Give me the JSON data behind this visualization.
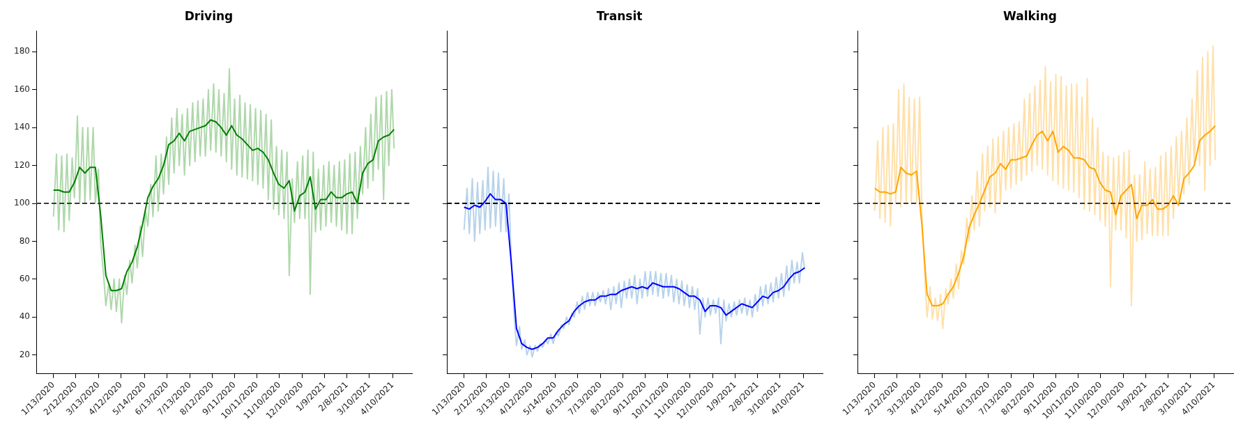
{
  "chart_data": [
    {
      "type": "line",
      "title": "Driving",
      "grid": false,
      "legend": false,
      "x": [
        "2020-01-13",
        "2020-01-17",
        "2020-01-20",
        "2020-01-24",
        "2020-01-27",
        "2020-01-31",
        "2020-02-03",
        "2020-02-07",
        "2020-02-10",
        "2020-02-14",
        "2020-02-17",
        "2020-02-21",
        "2020-02-24",
        "2020-02-28",
        "2020-03-02",
        "2020-03-06",
        "2020-03-09",
        "2020-03-13",
        "2020-03-16",
        "2020-03-20",
        "2020-03-23",
        "2020-03-27",
        "2020-03-30",
        "2020-04-03",
        "2020-04-06",
        "2020-04-10",
        "2020-04-13",
        "2020-04-17",
        "2020-04-20",
        "2020-04-24",
        "2020-04-27",
        "2020-05-01",
        "2020-05-04",
        "2020-05-08",
        "2020-05-11",
        "2020-05-15",
        "2020-05-18",
        "2020-05-22",
        "2020-05-25",
        "2020-05-29",
        "2020-06-01",
        "2020-06-05",
        "2020-06-08",
        "2020-06-12",
        "2020-06-15",
        "2020-06-19",
        "2020-06-22",
        "2020-06-26",
        "2020-06-29",
        "2020-07-03",
        "2020-07-06",
        "2020-07-10",
        "2020-07-13",
        "2020-07-17",
        "2020-07-20",
        "2020-07-24",
        "2020-07-27",
        "2020-07-31",
        "2020-08-03",
        "2020-08-07",
        "2020-08-10",
        "2020-08-14",
        "2020-08-17",
        "2020-08-21",
        "2020-08-24",
        "2020-08-28",
        "2020-08-31",
        "2020-09-04",
        "2020-09-07",
        "2020-09-11",
        "2020-09-14",
        "2020-09-18",
        "2020-09-21",
        "2020-09-25",
        "2020-09-28",
        "2020-10-02",
        "2020-10-05",
        "2020-10-09",
        "2020-10-12",
        "2020-10-16",
        "2020-10-19",
        "2020-10-23",
        "2020-10-26",
        "2020-10-30",
        "2020-11-02",
        "2020-11-06",
        "2020-11-09",
        "2020-11-13",
        "2020-11-16",
        "2020-11-20",
        "2020-11-23",
        "2020-11-27",
        "2020-11-30",
        "2020-12-04",
        "2020-12-07",
        "2020-12-11",
        "2020-12-14",
        "2020-12-18",
        "2020-12-21",
        "2020-12-25",
        "2020-12-28",
        "2021-01-01",
        "2021-01-04",
        "2021-01-08",
        "2021-01-11",
        "2021-01-15",
        "2021-01-18",
        "2021-01-22",
        "2021-01-25",
        "2021-01-29",
        "2021-02-01",
        "2021-02-05",
        "2021-02-08",
        "2021-02-12",
        "2021-02-15",
        "2021-02-19",
        "2021-02-22",
        "2021-02-26",
        "2021-03-01",
        "2021-03-05",
        "2021-03-08",
        "2021-03-12",
        "2021-03-15",
        "2021-03-19",
        "2021-03-22",
        "2021-03-26",
        "2021-03-29",
        "2021-04-02",
        "2021-04-05",
        "2021-04-09",
        "2021-04-12"
      ],
      "series": [
        {
          "color": "#afd8ab",
          "values": [
            93,
            126,
            86,
            125,
            85,
            126,
            91,
            124,
            103,
            146,
            100,
            140,
            100,
            140,
            102,
            140,
            100,
            118,
            80,
            62,
            46,
            58,
            44,
            60,
            43,
            60,
            37,
            62,
            52,
            70,
            58,
            78,
            66,
            88,
            72,
            96,
            88,
            110,
            93,
            125,
            96,
            126,
            105,
            135,
            110,
            145,
            116,
            150,
            120,
            147,
            115,
            150,
            120,
            153,
            122,
            154,
            125,
            155,
            125,
            160,
            128,
            163,
            127,
            160,
            125,
            158,
            122,
            171,
            118,
            155,
            115,
            157,
            114,
            153,
            113,
            152,
            112,
            150,
            110,
            149,
            108,
            147,
            102,
            144,
            97,
            130,
            94,
            128,
            92,
            127,
            62,
            113,
            90,
            122,
            92,
            125,
            92,
            128,
            52,
            127,
            85,
            118,
            86,
            120,
            88,
            122,
            90,
            120,
            88,
            122,
            86,
            123,
            84,
            126,
            84,
            127,
            92,
            130,
            105,
            140,
            108,
            147,
            112,
            156,
            118,
            157,
            102,
            159,
            120,
            160,
            129
          ]
        },
        {
          "color": "#008000",
          "x": [
            "2020-01-13",
            "2020-01-20",
            "2020-01-27",
            "2020-02-03",
            "2020-02-10",
            "2020-02-17",
            "2020-02-24",
            "2020-03-02",
            "2020-03-09",
            "2020-03-16",
            "2020-03-23",
            "2020-03-30",
            "2020-04-06",
            "2020-04-13",
            "2020-04-20",
            "2020-04-27",
            "2020-05-04",
            "2020-05-11",
            "2020-05-18",
            "2020-05-25",
            "2020-06-01",
            "2020-06-08",
            "2020-06-15",
            "2020-06-22",
            "2020-06-29",
            "2020-07-06",
            "2020-07-13",
            "2020-07-20",
            "2020-07-27",
            "2020-08-03",
            "2020-08-10",
            "2020-08-17",
            "2020-08-24",
            "2020-08-31",
            "2020-09-07",
            "2020-09-14",
            "2020-09-21",
            "2020-09-28",
            "2020-10-05",
            "2020-10-12",
            "2020-10-19",
            "2020-10-26",
            "2020-11-02",
            "2020-11-09",
            "2020-11-16",
            "2020-11-23",
            "2020-11-30",
            "2020-12-07",
            "2020-12-14",
            "2020-12-21",
            "2020-12-28",
            "2021-01-04",
            "2021-01-11",
            "2021-01-18",
            "2021-01-25",
            "2021-02-01",
            "2021-02-08",
            "2021-02-15",
            "2021-02-22",
            "2021-03-01",
            "2021-03-08",
            "2021-03-15",
            "2021-03-22",
            "2021-03-29",
            "2021-04-05",
            "2021-04-12"
          ],
          "values": [
            107,
            107,
            106,
            106,
            111,
            119,
            116,
            119,
            119,
            94,
            62,
            54,
            54,
            55,
            64,
            69,
            77,
            89,
            103,
            109,
            113,
            120,
            131,
            133,
            137,
            133,
            138,
            139,
            140,
            141,
            144,
            143,
            140,
            136,
            141,
            136,
            134,
            131,
            128,
            129,
            127,
            123,
            116,
            110,
            108,
            112,
            96,
            104,
            106,
            114,
            97,
            102,
            102,
            106,
            103,
            103,
            105,
            106,
            100,
            116,
            121,
            123,
            133,
            135,
            136,
            139
          ]
        }
      ],
      "xlim": [
        "2019-12-21",
        "2021-05-06"
      ],
      "xticks": [
        {
          "value": "2020-01-13",
          "label": "1/13/2020"
        },
        {
          "value": "2020-02-12",
          "label": "2/12/2020"
        },
        {
          "value": "2020-03-13",
          "label": "3/13/2020"
        },
        {
          "value": "2020-04-12",
          "label": "4/12/2020"
        },
        {
          "value": "2020-05-14",
          "label": "5/14/2020"
        },
        {
          "value": "2020-06-13",
          "label": "6/13/2020"
        },
        {
          "value": "2020-07-13",
          "label": "7/13/2020"
        },
        {
          "value": "2020-08-12",
          "label": "8/12/2020"
        },
        {
          "value": "2020-09-11",
          "label": "9/11/2020"
        },
        {
          "value": "2020-10-11",
          "label": "10/11/2020"
        },
        {
          "value": "2020-11-10",
          "label": "11/10/2020"
        },
        {
          "value": "2020-12-10",
          "label": "12/10/2020"
        },
        {
          "value": "2021-01-09",
          "label": "1/9/2021"
        },
        {
          "value": "2021-02-08",
          "label": "2/8/2021"
        },
        {
          "value": "2021-03-10",
          "label": "3/10/2021"
        },
        {
          "value": "2021-04-10",
          "label": "4/10/2021"
        }
      ],
      "ylim": [
        10,
        191
      ],
      "yticks": [
        20,
        40,
        60,
        80,
        100,
        120,
        140,
        160,
        180
      ],
      "ref_lines": [
        {
          "axis": "y",
          "value": 100,
          "color": "#3a3a3a",
          "line_style": "dashed"
        }
      ]
    },
    {
      "type": "line",
      "title": "Transit",
      "grid": false,
      "legend": false,
      "tick_labels": "x",
      "x": [
        "2020-01-13",
        "2020-01-17",
        "2020-01-20",
        "2020-01-24",
        "2020-01-27",
        "2020-01-31",
        "2020-02-03",
        "2020-02-07",
        "2020-02-10",
        "2020-02-14",
        "2020-02-17",
        "2020-02-21",
        "2020-02-24",
        "2020-02-28",
        "2020-03-02",
        "2020-03-06",
        "2020-03-09",
        "2020-03-13",
        "2020-03-16",
        "2020-03-20",
        "2020-03-23",
        "2020-03-27",
        "2020-03-30",
        "2020-04-03",
        "2020-04-06",
        "2020-04-10",
        "2020-04-13",
        "2020-04-17",
        "2020-04-20",
        "2020-04-24",
        "2020-04-27",
        "2020-05-01",
        "2020-05-04",
        "2020-05-08",
        "2020-05-11",
        "2020-05-15",
        "2020-05-18",
        "2020-05-22",
        "2020-05-25",
        "2020-05-29",
        "2020-06-01",
        "2020-06-05",
        "2020-06-08",
        "2020-06-12",
        "2020-06-15",
        "2020-06-19",
        "2020-06-22",
        "2020-06-26",
        "2020-06-29",
        "2020-07-03",
        "2020-07-06",
        "2020-07-10",
        "2020-07-13",
        "2020-07-17",
        "2020-07-20",
        "2020-07-24",
        "2020-07-27",
        "2020-07-31",
        "2020-08-03",
        "2020-08-07",
        "2020-08-10",
        "2020-08-14",
        "2020-08-17",
        "2020-08-21",
        "2020-08-24",
        "2020-08-28",
        "2020-08-31",
        "2020-09-04",
        "2020-09-07",
        "2020-09-11",
        "2020-09-14",
        "2020-09-18",
        "2020-09-21",
        "2020-09-25",
        "2020-09-28",
        "2020-10-02",
        "2020-10-05",
        "2020-10-09",
        "2020-10-12",
        "2020-10-16",
        "2020-10-19",
        "2020-10-23",
        "2020-10-26",
        "2020-10-30",
        "2020-11-02",
        "2020-11-06",
        "2020-11-09",
        "2020-11-13",
        "2020-11-16",
        "2020-11-20",
        "2020-11-23",
        "2020-11-27",
        "2020-11-30",
        "2020-12-04",
        "2020-12-07",
        "2020-12-11",
        "2020-12-14",
        "2020-12-18",
        "2020-12-21",
        "2020-12-25",
        "2020-12-28",
        "2021-01-01",
        "2021-01-04",
        "2021-01-08",
        "2021-01-11",
        "2021-01-15",
        "2021-01-18",
        "2021-01-22",
        "2021-01-25",
        "2021-01-29",
        "2021-02-01",
        "2021-02-05",
        "2021-02-08",
        "2021-02-12",
        "2021-02-15",
        "2021-02-19",
        "2021-02-22",
        "2021-02-26",
        "2021-03-01",
        "2021-03-05",
        "2021-03-08",
        "2021-03-12",
        "2021-03-15",
        "2021-03-19",
        "2021-03-22",
        "2021-03-26",
        "2021-03-29",
        "2021-04-02",
        "2021-04-05",
        "2021-04-09",
        "2021-04-12"
      ],
      "series": [
        {
          "color": "#b8d3ea",
          "values": [
            86,
            108,
            84,
            113,
            80,
            111,
            84,
            112,
            86,
            119,
            87,
            117,
            88,
            116,
            85,
            113,
            85,
            105,
            70,
            40,
            25,
            35,
            23,
            28,
            20,
            25,
            19,
            25,
            22,
            26,
            24,
            28,
            26,
            31,
            26,
            32,
            30,
            36,
            34,
            40,
            36,
            42,
            40,
            48,
            42,
            51,
            44,
            53,
            46,
            53,
            46,
            53,
            48,
            54,
            47,
            55,
            44,
            56,
            47,
            58,
            45,
            59,
            50,
            60,
            50,
            62,
            47,
            60,
            50,
            64,
            51,
            64,
            52,
            64,
            51,
            63,
            50,
            63,
            51,
            62,
            48,
            60,
            47,
            59,
            46,
            57,
            45,
            56,
            44,
            55,
            31,
            50,
            40,
            50,
            41,
            49,
            42,
            50,
            26,
            49,
            38,
            47,
            40,
            48,
            41,
            49,
            42,
            50,
            41,
            49,
            40,
            52,
            43,
            56,
            46,
            57,
            47,
            58,
            48,
            61,
            50,
            63,
            51,
            67,
            54,
            70,
            58,
            69,
            58,
            74,
            65
          ]
        },
        {
          "color": "#0000ff",
          "x": [
            "2020-01-13",
            "2020-01-20",
            "2020-01-27",
            "2020-02-03",
            "2020-02-10",
            "2020-02-17",
            "2020-02-24",
            "2020-03-02",
            "2020-03-09",
            "2020-03-16",
            "2020-03-23",
            "2020-03-30",
            "2020-04-06",
            "2020-04-13",
            "2020-04-20",
            "2020-04-27",
            "2020-05-04",
            "2020-05-11",
            "2020-05-18",
            "2020-05-25",
            "2020-06-01",
            "2020-06-08",
            "2020-06-15",
            "2020-06-22",
            "2020-06-29",
            "2020-07-06",
            "2020-07-13",
            "2020-07-20",
            "2020-07-27",
            "2020-08-03",
            "2020-08-10",
            "2020-08-17",
            "2020-08-24",
            "2020-08-31",
            "2020-09-07",
            "2020-09-14",
            "2020-09-21",
            "2020-09-28",
            "2020-10-05",
            "2020-10-12",
            "2020-10-19",
            "2020-10-26",
            "2020-11-02",
            "2020-11-09",
            "2020-11-16",
            "2020-11-23",
            "2020-11-30",
            "2020-12-07",
            "2020-12-14",
            "2020-12-21",
            "2020-12-28",
            "2021-01-04",
            "2021-01-11",
            "2021-01-18",
            "2021-01-25",
            "2021-02-01",
            "2021-02-08",
            "2021-02-15",
            "2021-02-22",
            "2021-03-01",
            "2021-03-08",
            "2021-03-15",
            "2021-03-22",
            "2021-03-29",
            "2021-04-05",
            "2021-04-12"
          ],
          "values": [
            98,
            97,
            99,
            98,
            101,
            105,
            102,
            102,
            100,
            69,
            34,
            26,
            24,
            23,
            24,
            26,
            29,
            29,
            33,
            36,
            38,
            43,
            46,
            48,
            49,
            49,
            51,
            51,
            52,
            52,
            54,
            55,
            56,
            55,
            56,
            55,
            58,
            57,
            56,
            56,
            56,
            55,
            53,
            51,
            51,
            49,
            43,
            46,
            46,
            45,
            41,
            43,
            45,
            47,
            46,
            45,
            48,
            51,
            50,
            53,
            54,
            56,
            60,
            63,
            64,
            66
          ]
        }
      ],
      "xlim": [
        "2019-12-21",
        "2021-05-06"
      ],
      "xticks": [
        {
          "value": "2020-01-13",
          "label": "1/13/2020"
        },
        {
          "value": "2020-02-12",
          "label": "2/12/2020"
        },
        {
          "value": "2020-03-13",
          "label": "3/13/2020"
        },
        {
          "value": "2020-04-12",
          "label": "4/12/2020"
        },
        {
          "value": "2020-05-14",
          "label": "5/14/2020"
        },
        {
          "value": "2020-06-13",
          "label": "6/13/2020"
        },
        {
          "value": "2020-07-13",
          "label": "7/13/2020"
        },
        {
          "value": "2020-08-12",
          "label": "8/12/2020"
        },
        {
          "value": "2020-09-11",
          "label": "9/11/2020"
        },
        {
          "value": "2020-10-11",
          "label": "10/11/2020"
        },
        {
          "value": "2020-11-10",
          "label": "11/10/2020"
        },
        {
          "value": "2020-12-10",
          "label": "12/10/2020"
        },
        {
          "value": "2021-01-09",
          "label": "1/9/2021"
        },
        {
          "value": "2021-02-08",
          "label": "2/8/2021"
        },
        {
          "value": "2021-03-10",
          "label": "3/10/2021"
        },
        {
          "value": "2021-04-10",
          "label": "4/10/2021"
        }
      ],
      "ylim": [
        10,
        191
      ],
      "yticks": [
        20,
        40,
        60,
        80,
        100,
        120,
        140,
        160,
        180
      ],
      "ref_lines": [
        {
          "axis": "y",
          "value": 100,
          "color": "#000000",
          "line_style": "dashed"
        }
      ]
    },
    {
      "type": "line",
      "title": "Walking",
      "grid": false,
      "legend": false,
      "tick_labels": "x",
      "x": [
        "2020-01-13",
        "2020-01-17",
        "2020-01-20",
        "2020-01-24",
        "2020-01-27",
        "2020-01-31",
        "2020-02-03",
        "2020-02-07",
        "2020-02-10",
        "2020-02-14",
        "2020-02-17",
        "2020-02-21",
        "2020-02-24",
        "2020-02-28",
        "2020-03-02",
        "2020-03-06",
        "2020-03-09",
        "2020-03-13",
        "2020-03-16",
        "2020-03-20",
        "2020-03-23",
        "2020-03-27",
        "2020-03-30",
        "2020-04-03",
        "2020-04-06",
        "2020-04-10",
        "2020-04-13",
        "2020-04-17",
        "2020-04-20",
        "2020-04-24",
        "2020-04-27",
        "2020-05-01",
        "2020-05-04",
        "2020-05-08",
        "2020-05-11",
        "2020-05-15",
        "2020-05-18",
        "2020-05-22",
        "2020-05-25",
        "2020-05-29",
        "2020-06-01",
        "2020-06-05",
        "2020-06-08",
        "2020-06-12",
        "2020-06-15",
        "2020-06-19",
        "2020-06-22",
        "2020-06-26",
        "2020-06-29",
        "2020-07-03",
        "2020-07-06",
        "2020-07-10",
        "2020-07-13",
        "2020-07-17",
        "2020-07-20",
        "2020-07-24",
        "2020-07-27",
        "2020-07-31",
        "2020-08-03",
        "2020-08-07",
        "2020-08-10",
        "2020-08-14",
        "2020-08-17",
        "2020-08-21",
        "2020-08-24",
        "2020-08-28",
        "2020-08-31",
        "2020-09-04",
        "2020-09-07",
        "2020-09-11",
        "2020-09-14",
        "2020-09-18",
        "2020-09-21",
        "2020-09-25",
        "2020-09-28",
        "2020-10-02",
        "2020-10-05",
        "2020-10-09",
        "2020-10-12",
        "2020-10-16",
        "2020-10-19",
        "2020-10-23",
        "2020-10-26",
        "2020-10-30",
        "2020-11-02",
        "2020-11-06",
        "2020-11-09",
        "2020-11-13",
        "2020-11-16",
        "2020-11-20",
        "2020-11-23",
        "2020-11-27",
        "2020-11-30",
        "2020-12-04",
        "2020-12-07",
        "2020-12-11",
        "2020-12-14",
        "2020-12-18",
        "2020-12-21",
        "2020-12-25",
        "2020-12-28",
        "2021-01-01",
        "2021-01-04",
        "2021-01-08",
        "2021-01-11",
        "2021-01-15",
        "2021-01-18",
        "2021-01-22",
        "2021-01-25",
        "2021-01-29",
        "2021-02-01",
        "2021-02-05",
        "2021-02-08",
        "2021-02-12",
        "2021-02-15",
        "2021-02-19",
        "2021-02-22",
        "2021-02-26",
        "2021-03-01",
        "2021-03-05",
        "2021-03-08",
        "2021-03-12",
        "2021-03-15",
        "2021-03-19",
        "2021-03-22",
        "2021-03-26",
        "2021-03-29",
        "2021-04-02",
        "2021-04-05",
        "2021-04-09",
        "2021-04-12"
      ],
      "series": [
        {
          "color": "#ffe0aa",
          "values": [
            96,
            133,
            92,
            140,
            90,
            141,
            88,
            142,
            100,
            160,
            98,
            163,
            100,
            156,
            100,
            155,
            100,
            156,
            95,
            60,
            40,
            56,
            39,
            50,
            38,
            52,
            34,
            55,
            47,
            60,
            50,
            68,
            55,
            75,
            68,
            92,
            80,
            104,
            86,
            117,
            88,
            126,
            96,
            130,
            98,
            134,
            95,
            135,
            100,
            138,
            107,
            140,
            108,
            142,
            110,
            143,
            112,
            155,
            115,
            158,
            117,
            162,
            120,
            165,
            118,
            172,
            115,
            164,
            112,
            168,
            110,
            167,
            108,
            162,
            107,
            163,
            106,
            163,
            103,
            156,
            97,
            166,
            96,
            145,
            94,
            140,
            91,
            127,
            88,
            125,
            56,
            124,
            86,
            125,
            86,
            127,
            82,
            128,
            46,
            115,
            80,
            115,
            81,
            122,
            84,
            118,
            83,
            119,
            83,
            125,
            83,
            127,
            83,
            130,
            92,
            135,
            100,
            138,
            105,
            145,
            110,
            155,
            120,
            170,
            120,
            177,
            107,
            180,
            120,
            183,
            123
          ]
        },
        {
          "color": "#ffa500",
          "x": [
            "2020-01-13",
            "2020-01-20",
            "2020-01-27",
            "2020-02-03",
            "2020-02-10",
            "2020-02-17",
            "2020-02-24",
            "2020-03-02",
            "2020-03-09",
            "2020-03-16",
            "2020-03-23",
            "2020-03-30",
            "2020-04-06",
            "2020-04-13",
            "2020-04-20",
            "2020-04-27",
            "2020-05-04",
            "2020-05-11",
            "2020-05-18",
            "2020-05-25",
            "2020-06-01",
            "2020-06-08",
            "2020-06-15",
            "2020-06-22",
            "2020-06-29",
            "2020-07-06",
            "2020-07-13",
            "2020-07-20",
            "2020-07-27",
            "2020-08-03",
            "2020-08-10",
            "2020-08-17",
            "2020-08-24",
            "2020-08-31",
            "2020-09-07",
            "2020-09-14",
            "2020-09-21",
            "2020-09-28",
            "2020-10-05",
            "2020-10-12",
            "2020-10-19",
            "2020-10-26",
            "2020-11-02",
            "2020-11-09",
            "2020-11-16",
            "2020-11-23",
            "2020-11-30",
            "2020-12-07",
            "2020-12-14",
            "2020-12-21",
            "2020-12-28",
            "2021-01-04",
            "2021-01-11",
            "2021-01-18",
            "2021-01-25",
            "2021-02-01",
            "2021-02-08",
            "2021-02-15",
            "2021-02-22",
            "2021-03-01",
            "2021-03-08",
            "2021-03-15",
            "2021-03-22",
            "2021-03-29",
            "2021-04-05",
            "2021-04-12"
          ],
          "values": [
            108,
            106,
            106,
            105,
            106,
            119,
            116,
            115,
            117,
            89,
            52,
            46,
            46,
            47,
            52,
            56,
            63,
            72,
            87,
            94,
            100,
            107,
            114,
            116,
            121,
            118,
            123,
            123,
            124,
            125,
            131,
            136,
            138,
            133,
            138,
            127,
            130,
            128,
            124,
            124,
            123,
            119,
            118,
            111,
            107,
            106,
            94,
            104,
            107,
            110,
            92,
            99,
            99,
            102,
            97,
            97,
            99,
            104,
            99,
            113,
            116,
            120,
            133,
            136,
            138,
            141
          ]
        }
      ],
      "xlim": [
        "2019-12-21",
        "2021-05-06"
      ],
      "xticks": [
        {
          "value": "2020-01-13",
          "label": "1/13/2020"
        },
        {
          "value": "2020-02-12",
          "label": "2/12/2020"
        },
        {
          "value": "2020-03-13",
          "label": "3/13/2020"
        },
        {
          "value": "2020-04-12",
          "label": "4/12/2020"
        },
        {
          "value": "2020-05-14",
          "label": "5/14/2020"
        },
        {
          "value": "2020-06-13",
          "label": "6/13/2020"
        },
        {
          "value": "2020-07-13",
          "label": "7/13/2020"
        },
        {
          "value": "2020-08-12",
          "label": "8/12/2020"
        },
        {
          "value": "2020-09-11",
          "label": "9/11/2020"
        },
        {
          "value": "2020-10-11",
          "label": "10/11/2020"
        },
        {
          "value": "2020-11-10",
          "label": "11/10/2020"
        },
        {
          "value": "2020-12-10",
          "label": "12/10/2020"
        },
        {
          "value": "2021-01-09",
          "label": "1/9/2021"
        },
        {
          "value": "2021-02-08",
          "label": "2/8/2021"
        },
        {
          "value": "2021-03-10",
          "label": "3/10/2021"
        },
        {
          "value": "2021-04-10",
          "label": "4/10/2021"
        }
      ],
      "ylim": [
        10,
        191
      ],
      "yticks": [
        20,
        40,
        60,
        80,
        100,
        120,
        140,
        160,
        180
      ],
      "ref_lines": [
        {
          "axis": "y",
          "value": 100,
          "color": "#3a3a3a",
          "line_style": "dashed"
        }
      ]
    }
  ]
}
